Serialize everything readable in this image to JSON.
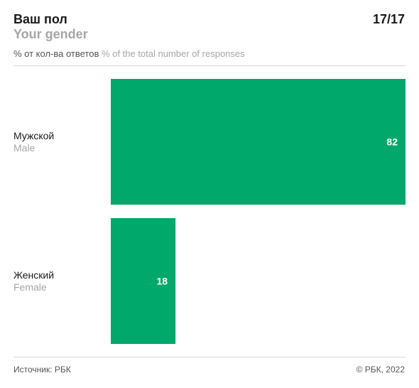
{
  "header": {
    "title": "Ваш пол",
    "title_en": "Your gender",
    "page": "17/17",
    "unit_ru": "% от кол-ва ответов",
    "unit_en": "% of the total number of responses"
  },
  "footer": {
    "source": "Источник: РБК",
    "copyright": "© РБК, 2022"
  },
  "colors": {
    "bar": "#00a86b",
    "label": "#ffffff"
  },
  "chart_data": {
    "type": "bar",
    "orientation": "horizontal",
    "categories": [
      "Мужской",
      "Женский"
    ],
    "categories_en": [
      "Male",
      "Female"
    ],
    "values": [
      82,
      18
    ],
    "xlim": [
      0,
      82
    ],
    "grid": false,
    "legend": "none"
  }
}
